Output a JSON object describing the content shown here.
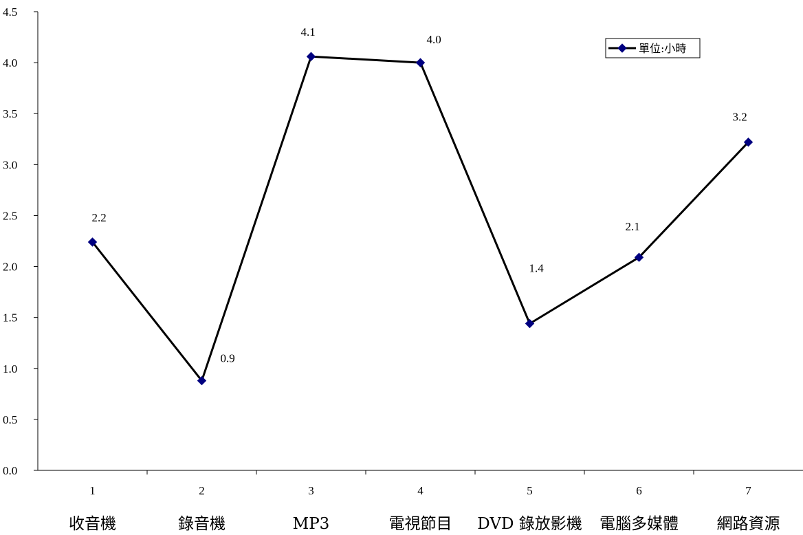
{
  "chart_data": {
    "type": "line",
    "x": [
      "1",
      "2",
      "3",
      "4",
      "5",
      "6",
      "7"
    ],
    "categories": [
      "收音機",
      "錄音機",
      "MP3",
      "電視節目",
      "DVD 錄放影機",
      "電腦多媒體",
      "網路資源"
    ],
    "series": [
      {
        "name": "單位:小時",
        "values": [
          2.24,
          0.88,
          4.06,
          4.0,
          1.44,
          2.09,
          3.22
        ],
        "labels": [
          "2.2",
          "0.9",
          "4.1",
          "4.0",
          "1.4",
          "2.1",
          "3.2"
        ],
        "color": "#000080",
        "line_color": "#000000",
        "marker": "diamond"
      }
    ],
    "ylim": [
      0,
      4.5
    ],
    "yticks": [
      "0.0",
      "0.5",
      "1.0",
      "1.5",
      "2.0",
      "2.5",
      "3.0",
      "3.5",
      "4.0",
      "4.5"
    ],
    "grid": false,
    "legend": "top-right"
  }
}
